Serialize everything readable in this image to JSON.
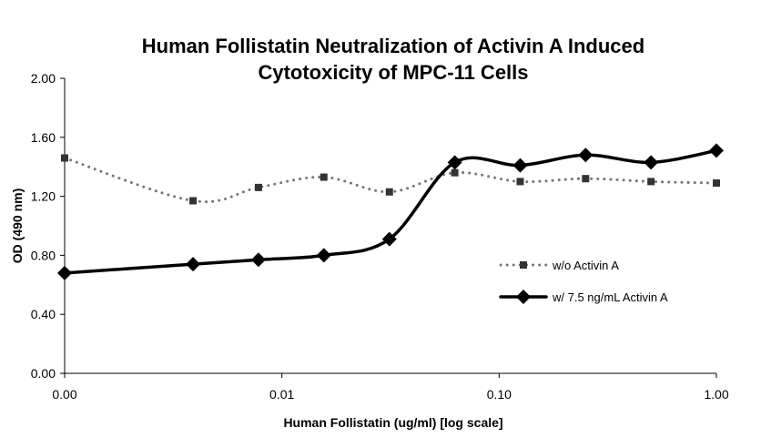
{
  "chart_data": {
    "type": "line",
    "title": "Human Follistatin Neutralization of Activin A Induced Cytotoxicity of MPC-11 Cells",
    "title_lines": [
      "Human Follistatin Neutralization of Activin A Induced",
      "Cytotoxicity of MPC-11 Cells"
    ],
    "xlabel": "Human Follistatin (ug/ml) [log scale]",
    "ylabel": "OD (490 nm)",
    "x_scale": "log",
    "xlim": [
      0.001,
      1
    ],
    "ylim": [
      0,
      2
    ],
    "x_ticks": [
      0.001,
      0.01,
      0.1,
      1
    ],
    "x_tick_labels": [
      "0.00",
      "0.01",
      "0.10",
      "1.00"
    ],
    "y_ticks": [
      0,
      0.4,
      0.8,
      1.2,
      1.6,
      2.0
    ],
    "y_tick_labels": [
      "0.00",
      "0.40",
      "0.80",
      "1.20",
      "1.60",
      "2.00"
    ],
    "grid": false,
    "legend_position": "right",
    "x": [
      0.001,
      0.0039,
      0.0078,
      0.0156,
      0.03125,
      0.0625,
      0.125,
      0.25,
      0.5,
      1.0
    ],
    "series": [
      {
        "name": "w/o Activin A",
        "color": "#888888",
        "marker": "square",
        "line_style": "dotted",
        "values": [
          1.46,
          1.17,
          1.26,
          1.33,
          1.23,
          1.36,
          1.3,
          1.32,
          1.3,
          1.29
        ]
      },
      {
        "name": "w/ 7.5 ng/mL Activin A",
        "color": "#000000",
        "marker": "diamond",
        "line_style": "solid",
        "values": [
          0.68,
          0.74,
          0.77,
          0.8,
          0.91,
          1.43,
          1.41,
          1.48,
          1.43,
          1.51
        ]
      }
    ]
  }
}
